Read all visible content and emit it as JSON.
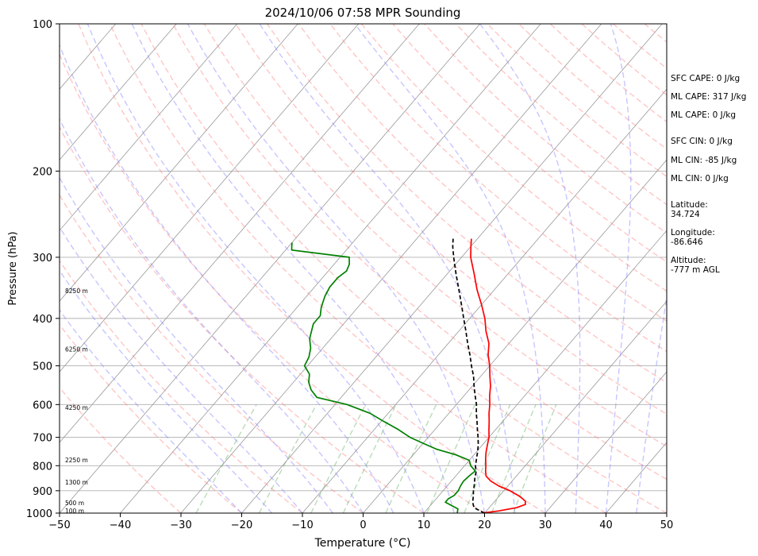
{
  "chart_data": {
    "type": "skew-t",
    "title": "2024/10/06 07:58 MPR Sounding",
    "xlabel": "Temperature (°C)",
    "ylabel": "Pressure (hPa)",
    "xlim": [
      -50,
      50
    ],
    "ylim": [
      1000,
      100
    ],
    "x_ticks": [
      "−50",
      "−40",
      "−30",
      "−20",
      "−10",
      "0",
      "10",
      "20",
      "30",
      "40",
      "50"
    ],
    "p_ticks": [
      "1000",
      "900",
      "800",
      "700",
      "600",
      "500",
      "400",
      "300",
      "200",
      "100"
    ],
    "log_pressure_axis": true,
    "grid": true,
    "series": [
      {
        "role": "temperature",
        "color": "#ff0000",
        "points": [
          [
            1000,
            19.5
          ],
          [
            990,
            22
          ],
          [
            975,
            24.5
          ],
          [
            960,
            25.5
          ],
          [
            945,
            25
          ],
          [
            925,
            23.5
          ],
          [
            900,
            21
          ],
          [
            880,
            18.5
          ],
          [
            860,
            16.5
          ],
          [
            840,
            15
          ],
          [
            820,
            14.2
          ],
          [
            800,
            13.5
          ],
          [
            775,
            12.5
          ],
          [
            750,
            11.6
          ],
          [
            725,
            10.8
          ],
          [
            700,
            10
          ],
          [
            675,
            8.9
          ],
          [
            650,
            7.8
          ],
          [
            625,
            6.6
          ],
          [
            600,
            5.5
          ],
          [
            575,
            4.2
          ],
          [
            550,
            3
          ],
          [
            525,
            1.5
          ],
          [
            500,
            0
          ],
          [
            475,
            -1.8
          ],
          [
            450,
            -3.3
          ],
          [
            425,
            -5.5
          ],
          [
            400,
            -7.5
          ],
          [
            375,
            -10
          ],
          [
            350,
            -12.8
          ],
          [
            325,
            -15.5
          ],
          [
            300,
            -18.5
          ],
          [
            285,
            -20
          ],
          [
            275,
            -21
          ]
        ]
      },
      {
        "role": "dewpoint",
        "color": "#008000",
        "points": [
          [
            1000,
            15.5
          ],
          [
            980,
            15
          ],
          [
            965,
            13.5
          ],
          [
            950,
            12
          ],
          [
            935,
            12
          ],
          [
            920,
            12.5
          ],
          [
            900,
            12.5
          ],
          [
            880,
            12.2
          ],
          [
            860,
            12
          ],
          [
            840,
            12.2
          ],
          [
            820,
            12.5
          ],
          [
            800,
            11
          ],
          [
            780,
            10
          ],
          [
            760,
            7
          ],
          [
            740,
            3
          ],
          [
            720,
            0
          ],
          [
            700,
            -3
          ],
          [
            675,
            -6
          ],
          [
            650,
            -9.5
          ],
          [
            625,
            -13
          ],
          [
            600,
            -18
          ],
          [
            580,
            -24
          ],
          [
            560,
            -26
          ],
          [
            540,
            -27.5
          ],
          [
            520,
            -28.5
          ],
          [
            505,
            -30
          ],
          [
            500,
            -30.5
          ],
          [
            480,
            -31
          ],
          [
            460,
            -32
          ],
          [
            440,
            -33.5
          ],
          [
            420,
            -34.5
          ],
          [
            410,
            -35
          ],
          [
            395,
            -35
          ],
          [
            380,
            -36
          ],
          [
            370,
            -36.5
          ],
          [
            360,
            -37
          ],
          [
            345,
            -37.5
          ],
          [
            330,
            -37.5
          ],
          [
            320,
            -37
          ],
          [
            310,
            -37.5
          ],
          [
            300,
            -38.5
          ],
          [
            290,
            -49
          ],
          [
            285,
            -49.5
          ],
          [
            280,
            -50
          ]
        ]
      },
      {
        "role": "parcel",
        "color": "#000000",
        "dashed": true,
        "points": [
          [
            1000,
            20
          ],
          [
            975,
            17.5
          ],
          [
            950,
            16.5
          ],
          [
            925,
            15.8
          ],
          [
            900,
            15
          ],
          [
            875,
            14.3
          ],
          [
            850,
            13.5
          ],
          [
            825,
            12.8
          ],
          [
            800,
            11.8
          ],
          [
            775,
            11
          ],
          [
            750,
            10.2
          ],
          [
            725,
            9.3
          ],
          [
            700,
            8.2
          ],
          [
            675,
            7
          ],
          [
            650,
            5.8
          ],
          [
            625,
            4.5
          ],
          [
            600,
            3.3
          ],
          [
            575,
            1.8
          ],
          [
            550,
            0.3
          ],
          [
            525,
            -1.2
          ],
          [
            500,
            -3
          ],
          [
            475,
            -4.8
          ],
          [
            450,
            -6.8
          ],
          [
            425,
            -8.8
          ],
          [
            400,
            -11
          ],
          [
            375,
            -13.3
          ],
          [
            350,
            -15.8
          ],
          [
            325,
            -18.5
          ],
          [
            300,
            -21.3
          ],
          [
            285,
            -23
          ],
          [
            275,
            -24
          ]
        ]
      }
    ],
    "height_labels": [
      {
        "text": "100 m",
        "p": 989
      },
      {
        "text": "500 m",
        "p": 952
      },
      {
        "text": "1300 m",
        "p": 865
      },
      {
        "text": "2250 m",
        "p": 779
      },
      {
        "text": "4250 m",
        "p": 608
      },
      {
        "text": "6250 m",
        "p": 462
      },
      {
        "text": "8250 m",
        "p": 351
      }
    ],
    "annotations": [
      "SFC CAPE: 0 J/kg",
      "ML CAPE: 317 J/kg",
      "ML CAPE: 0 J/kg",
      "SFC CIN: 0 J/kg",
      "ML CIN: -85 J/kg",
      "ML CIN: 0 J/kg",
      "Latitude:",
      "34.724",
      "Longitude:",
      "-86.646",
      "Altitude:",
      "-777 m AGL"
    ],
    "colors": {
      "dry_adiabats": "#ff8080",
      "moist_adiabats": "#8080ff",
      "mixing_ratio": "#66b266",
      "isotherms": "#999999"
    }
  }
}
